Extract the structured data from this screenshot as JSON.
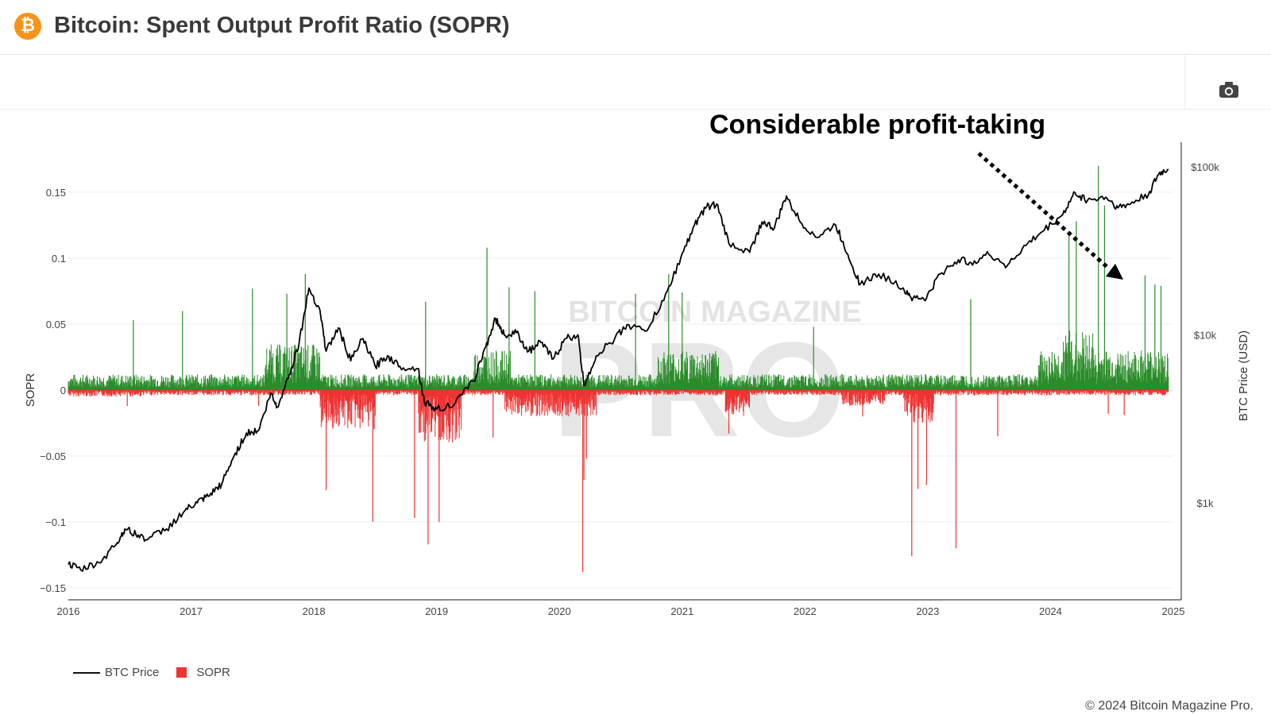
{
  "header": {
    "title": "Bitcoin: Spent Output Profit Ratio (SOPR)",
    "logo_icon": "bitcoin-icon"
  },
  "toolbar": {
    "camera_icon": "camera-icon"
  },
  "annotation": {
    "text": "Considerable profit-taking"
  },
  "footer": {
    "copyright": "© 2024 Bitcoin Magazine Pro."
  },
  "legend": {
    "price_label": "BTC Price",
    "sopr_label": "SOPR"
  },
  "chart_data": {
    "type": "bar",
    "ylabel_left": "SOPR",
    "ylabel_right": "BTC Price (USD)",
    "x_range": [
      2016.0,
      2025.0
    ],
    "x_ticks": [
      "2016",
      "2017",
      "2018",
      "2019",
      "2020",
      "2021",
      "2022",
      "2023",
      "2024",
      "2025"
    ],
    "y_left_range": [
      -0.15,
      0.15
    ],
    "y_left_ticks": [
      {
        "value": 0.15,
        "label": "0.15"
      },
      {
        "value": 0.1,
        "label": "0.1"
      },
      {
        "value": 0.05,
        "label": "0.05"
      },
      {
        "value": 0,
        "label": "0"
      },
      {
        "value": -0.05,
        "label": "−0.05"
      },
      {
        "value": -0.1,
        "label": "−0.1"
      },
      {
        "value": -0.15,
        "label": "−0.15"
      }
    ],
    "y_right_scale": "log",
    "y_right_ticks": [
      {
        "value": 1000,
        "label": "$1k"
      },
      {
        "value": 10000,
        "label": "$10k"
      },
      {
        "value": 100000,
        "label": "$100k"
      }
    ],
    "grid": true,
    "legend_position": "bottom-left",
    "colors": {
      "positive": "#2a8c2a",
      "negative": "#ee3333",
      "price": "#000000"
    },
    "series": [
      {
        "name": "BTC Price",
        "type": "line",
        "axis": "right",
        "points": [
          [
            2016.0,
            430
          ],
          [
            2016.1,
            400
          ],
          [
            2016.25,
            440
          ],
          [
            2016.4,
            580
          ],
          [
            2016.46,
            700
          ],
          [
            2016.55,
            650
          ],
          [
            2016.65,
            610
          ],
          [
            2016.8,
            700
          ],
          [
            2016.95,
            900
          ],
          [
            2017.05,
            1000
          ],
          [
            2017.15,
            1100
          ],
          [
            2017.25,
            1300
          ],
          [
            2017.35,
            1900
          ],
          [
            2017.45,
            2600
          ],
          [
            2017.55,
            2700
          ],
          [
            2017.65,
            4500
          ],
          [
            2017.7,
            3700
          ],
          [
            2017.8,
            5800
          ],
          [
            2017.88,
            9000
          ],
          [
            2017.96,
            19000
          ],
          [
            2018.05,
            14000
          ],
          [
            2018.1,
            8000
          ],
          [
            2018.2,
            11000
          ],
          [
            2018.3,
            7000
          ],
          [
            2018.4,
            9500
          ],
          [
            2018.5,
            6500
          ],
          [
            2018.6,
            7500
          ],
          [
            2018.7,
            6500
          ],
          [
            2018.85,
            6300
          ],
          [
            2018.9,
            4000
          ],
          [
            2019.0,
            3600
          ],
          [
            2019.15,
            3900
          ],
          [
            2019.3,
            5300
          ],
          [
            2019.4,
            8500
          ],
          [
            2019.48,
            12500
          ],
          [
            2019.55,
            10000
          ],
          [
            2019.65,
            10300
          ],
          [
            2019.75,
            8000
          ],
          [
            2019.85,
            9000
          ],
          [
            2019.95,
            7200
          ],
          [
            2020.05,
            9500
          ],
          [
            2020.15,
            10000
          ],
          [
            2020.2,
            5000
          ],
          [
            2020.3,
            7500
          ],
          [
            2020.45,
            9500
          ],
          [
            2020.55,
            11500
          ],
          [
            2020.7,
            10500
          ],
          [
            2020.85,
            16000
          ],
          [
            2020.99,
            29000
          ],
          [
            2021.1,
            45000
          ],
          [
            2021.2,
            58000
          ],
          [
            2021.28,
            60000
          ],
          [
            2021.38,
            35000
          ],
          [
            2021.55,
            31000
          ],
          [
            2021.65,
            47000
          ],
          [
            2021.75,
            43000
          ],
          [
            2021.85,
            67000
          ],
          [
            2021.96,
            47000
          ],
          [
            2022.1,
            38000
          ],
          [
            2022.25,
            45000
          ],
          [
            2022.35,
            30000
          ],
          [
            2022.45,
            20000
          ],
          [
            2022.6,
            23000
          ],
          [
            2022.8,
            19000
          ],
          [
            2022.88,
            16500
          ],
          [
            2022.99,
            16500
          ],
          [
            2023.1,
            23000
          ],
          [
            2023.25,
            28000
          ],
          [
            2023.35,
            27000
          ],
          [
            2023.5,
            30000
          ],
          [
            2023.65,
            26000
          ],
          [
            2023.8,
            34000
          ],
          [
            2023.95,
            42000
          ],
          [
            2024.1,
            52000
          ],
          [
            2024.2,
            70000
          ],
          [
            2024.3,
            63000
          ],
          [
            2024.45,
            66000
          ],
          [
            2024.55,
            57000
          ],
          [
            2024.65,
            60000
          ],
          [
            2024.8,
            69000
          ],
          [
            2024.88,
            90000
          ],
          [
            2024.96,
            97000
          ]
        ]
      },
      {
        "name": "SOPR",
        "type": "bar",
        "axis": "left"
      }
    ]
  }
}
